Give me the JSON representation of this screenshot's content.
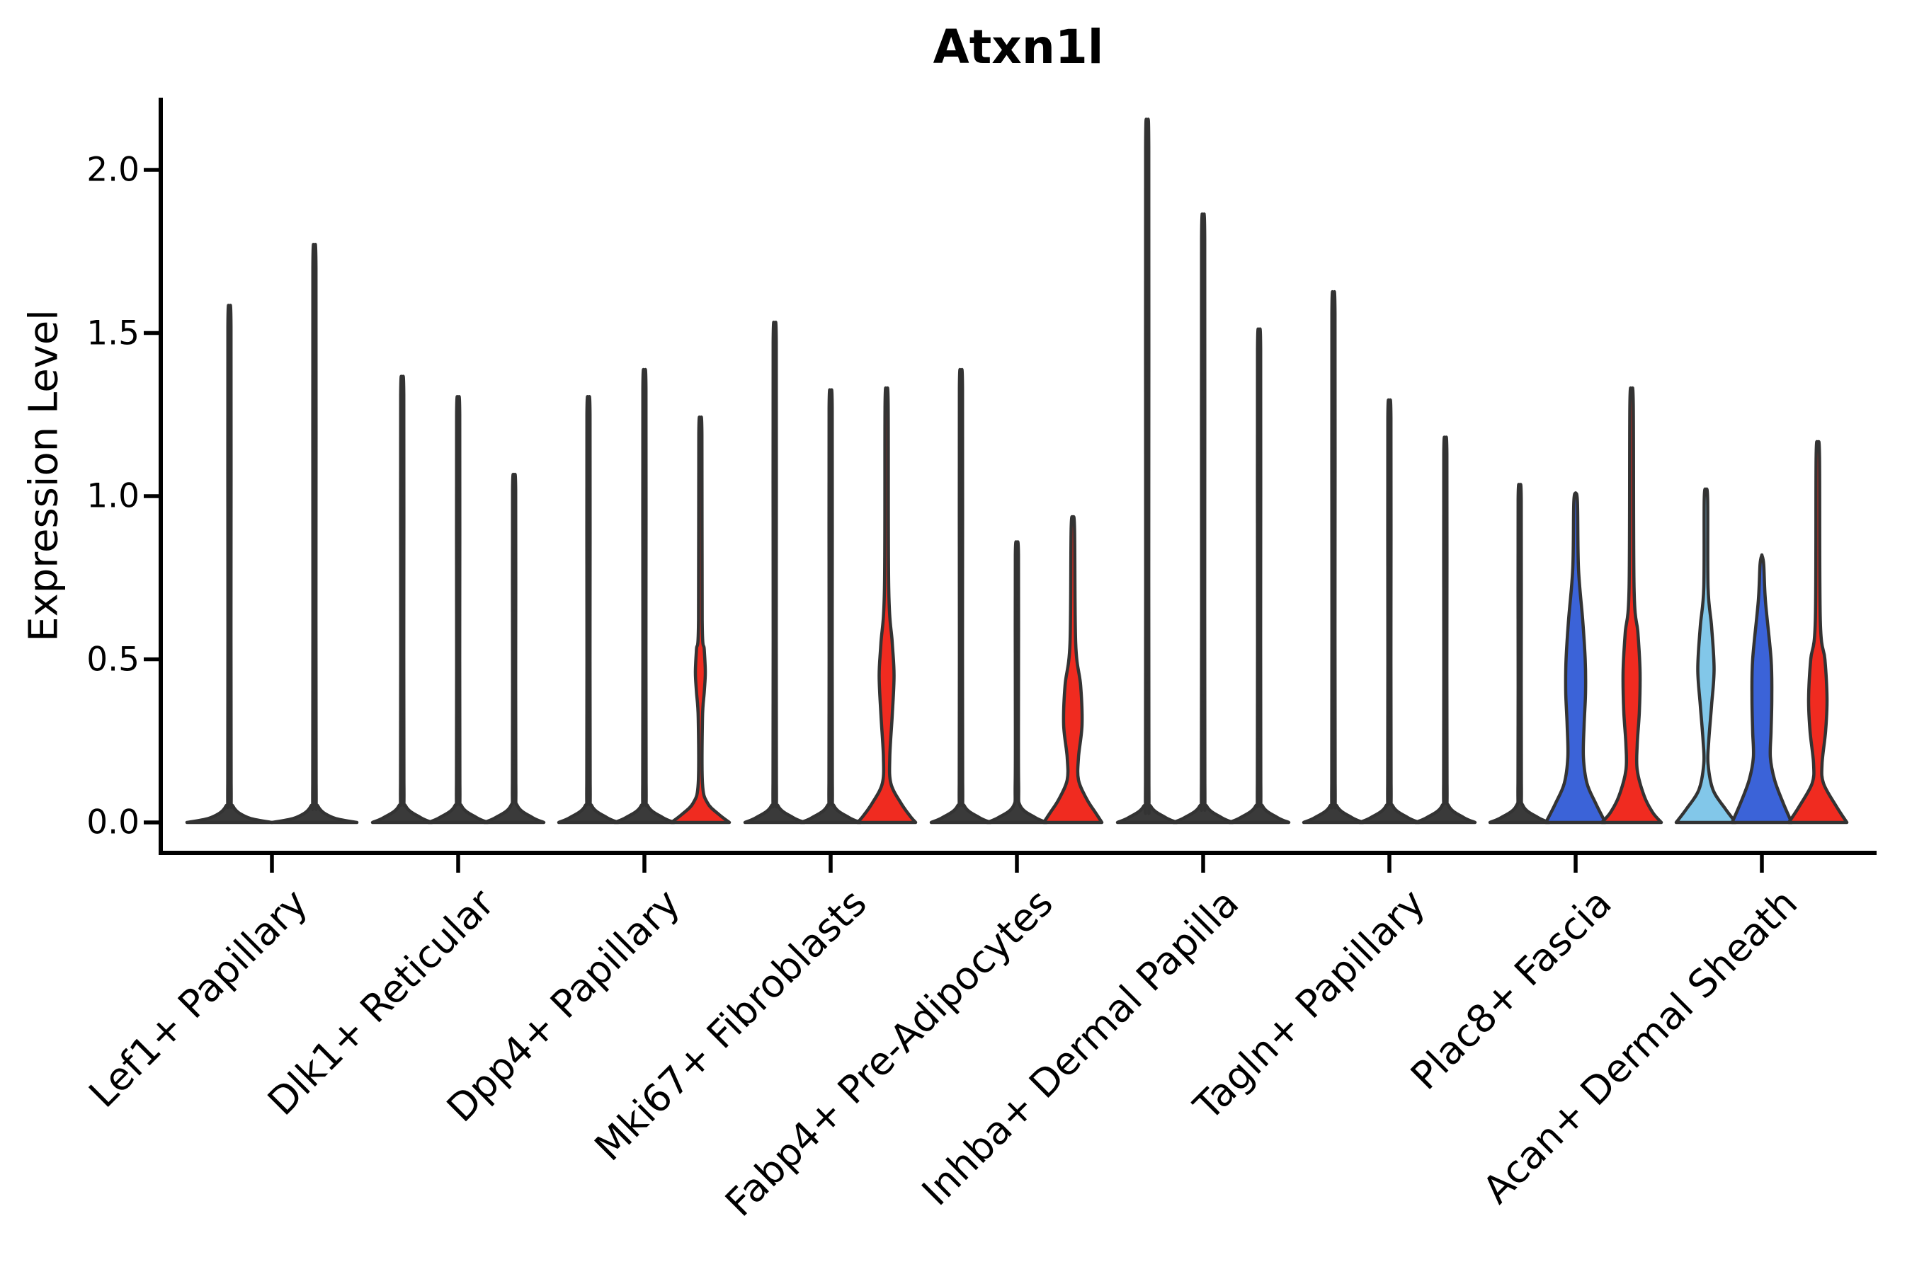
{
  "chart_data": {
    "type": "violin",
    "title": "Atxn1l",
    "ylabel": "Expression Level",
    "ylim": [
      0,
      2.2
    ],
    "yticks": [
      0,
      0.5,
      1.0,
      1.5,
      2.0
    ],
    "ytick_labels": [
      "0.0",
      "0.5",
      "1.0",
      "1.5",
      "2.0"
    ],
    "grid": false,
    "legend": null,
    "palette": {
      "red": "#f02b20",
      "blue": "#3b63d8",
      "light_blue": "#82c7e9",
      "dark": "#3a3a3a",
      "outline": "#333333",
      "axis": "#000000"
    },
    "categories": [
      "Lef1+ Papillary",
      "Dlk1+ Reticular",
      "Dpp4+ Papillary",
      "Mki67+ Fibroblasts",
      "Fabp4+ Pre-Adipocytes",
      "Inhba+ Dermal Papilla",
      "Tagln+ Papillary",
      "Plac8+ Fascia",
      "Acan+ Dermal Sheath"
    ],
    "groups": [
      {
        "label": "Lef1+ Papillary",
        "violins": [
          {
            "max_expression": 1.55,
            "color_key": "dark",
            "style": "thin"
          },
          {
            "max_expression": 1.73,
            "color_key": "dark",
            "style": "thin"
          }
        ]
      },
      {
        "label": "Dlk1+ Reticular",
        "violins": [
          {
            "max_expression": 1.34,
            "color_key": "dark",
            "style": "thin"
          },
          {
            "max_expression": 1.28,
            "color_key": "dark",
            "style": "thin"
          },
          {
            "max_expression": 1.05,
            "color_key": "dark",
            "style": "thin"
          }
        ]
      },
      {
        "label": "Dpp4+ Papillary",
        "violins": [
          {
            "max_expression": 1.28,
            "color_key": "dark",
            "style": "thin"
          },
          {
            "max_expression": 1.36,
            "color_key": "dark",
            "style": "thin"
          },
          {
            "max_expression": 1.22,
            "color_key": "red",
            "style": "custom",
            "profile": [
              [
                1.22,
                0
              ],
              [
                1.19,
                2.2
              ],
              [
                0.62,
                2.6
              ],
              [
                0.53,
                5.5
              ],
              [
                0.46,
                7
              ],
              [
                0.4,
                5.5
              ],
              [
                0.32,
                3
              ],
              [
                0.12,
                3
              ],
              [
                0.06,
                10
              ],
              [
                0.025,
                26
              ],
              [
                0,
                41
              ]
            ]
          }
        ]
      },
      {
        "label": "Mki67+ Fibroblasts",
        "violins": [
          {
            "max_expression": 1.5,
            "color_key": "dark",
            "style": "thin"
          },
          {
            "max_expression": 1.3,
            "color_key": "dark",
            "style": "thin"
          },
          {
            "max_expression": 1.31,
            "color_key": "red",
            "style": "custom",
            "profile": [
              [
                1.31,
                0
              ],
              [
                1.28,
                2.2
              ],
              [
                0.72,
                3
              ],
              [
                0.55,
                8
              ],
              [
                0.45,
                10.5
              ],
              [
                0.33,
                8
              ],
              [
                0.2,
                4.5
              ],
              [
                0.12,
                6
              ],
              [
                0.06,
                20
              ],
              [
                0.02,
                33
              ],
              [
                0,
                41
              ]
            ]
          }
        ]
      },
      {
        "label": "Fabp4+ Pre-Adipocytes",
        "violins": [
          {
            "max_expression": 1.36,
            "color_key": "dark",
            "style": "thin"
          },
          {
            "max_expression": 0.85,
            "color_key": "dark",
            "style": "thin"
          },
          {
            "max_expression": 0.93,
            "color_key": "red",
            "style": "custom",
            "profile": [
              [
                0.93,
                0
              ],
              [
                0.9,
                2.4
              ],
              [
                0.55,
                4
              ],
              [
                0.42,
                11
              ],
              [
                0.3,
                13
              ],
              [
                0.2,
                8
              ],
              [
                0.13,
                8
              ],
              [
                0.07,
                20
              ],
              [
                0.03,
                32
              ],
              [
                0,
                41
              ]
            ]
          }
        ]
      },
      {
        "label": "Inhba+ Dermal Papilla",
        "violins": [
          {
            "max_expression": 2.1,
            "color_key": "dark",
            "style": "thin"
          },
          {
            "max_expression": 1.82,
            "color_key": "dark",
            "style": "thin"
          },
          {
            "max_expression": 1.48,
            "color_key": "dark",
            "style": "thin"
          }
        ]
      },
      {
        "label": "Tagln+ Papillary",
        "violins": [
          {
            "max_expression": 1.59,
            "color_key": "dark",
            "style": "thin"
          },
          {
            "max_expression": 1.27,
            "color_key": "dark",
            "style": "thin"
          },
          {
            "max_expression": 1.16,
            "color_key": "dark",
            "style": "thin"
          }
        ]
      },
      {
        "label": "Plac8+ Fascia",
        "violins": [
          {
            "max_expression": 1.02,
            "color_key": "dark",
            "style": "thin"
          },
          {
            "max_expression": 1.01,
            "color_key": "blue",
            "style": "custom",
            "profile": [
              [
                1.01,
                0
              ],
              [
                0.98,
                2.6
              ],
              [
                0.78,
                4
              ],
              [
                0.62,
                10
              ],
              [
                0.5,
                13.5
              ],
              [
                0.4,
                14
              ],
              [
                0.3,
                12
              ],
              [
                0.2,
                11
              ],
              [
                0.12,
                16
              ],
              [
                0.06,
                28
              ],
              [
                0,
                42
              ]
            ]
          },
          {
            "max_expression": 1.31,
            "color_key": "red",
            "style": "custom",
            "profile": [
              [
                1.31,
                0
              ],
              [
                1.28,
                2.4
              ],
              [
                0.72,
                3.5
              ],
              [
                0.58,
                9
              ],
              [
                0.46,
                12
              ],
              [
                0.34,
                11
              ],
              [
                0.24,
                8
              ],
              [
                0.16,
                8
              ],
              [
                0.08,
                18
              ],
              [
                0.03,
                30
              ],
              [
                0,
                42
              ]
            ]
          }
        ]
      },
      {
        "label": "Acan+ Dermal Sheath",
        "violins": [
          {
            "max_expression": 1.02,
            "color_key": "light_blue",
            "style": "custom",
            "profile": [
              [
                1.02,
                0
              ],
              [
                0.99,
                2.4
              ],
              [
                0.72,
                3
              ],
              [
                0.6,
                8
              ],
              [
                0.47,
                11.5
              ],
              [
                0.36,
                8
              ],
              [
                0.25,
                4
              ],
              [
                0.18,
                3
              ],
              [
                0.1,
                10
              ],
              [
                0.04,
                28
              ],
              [
                0,
                42
              ]
            ]
          },
          {
            "max_expression": 0.82,
            "color_key": "blue",
            "style": "custom",
            "profile": [
              [
                0.82,
                0
              ],
              [
                0.79,
                2.6
              ],
              [
                0.68,
                5
              ],
              [
                0.5,
                13
              ],
              [
                0.38,
                14
              ],
              [
                0.28,
                13
              ],
              [
                0.2,
                12
              ],
              [
                0.13,
                18
              ],
              [
                0.06,
                30
              ],
              [
                0,
                42
              ]
            ]
          },
          {
            "max_expression": 1.15,
            "color_key": "red",
            "style": "custom",
            "profile": [
              [
                1.15,
                0
              ],
              [
                1.12,
                2.4
              ],
              [
                0.62,
                3.5
              ],
              [
                0.5,
                10
              ],
              [
                0.38,
                13
              ],
              [
                0.28,
                11
              ],
              [
                0.18,
                6
              ],
              [
                0.12,
                8
              ],
              [
                0.05,
                26
              ],
              [
                0,
                41
              ]
            ]
          }
        ]
      }
    ]
  }
}
